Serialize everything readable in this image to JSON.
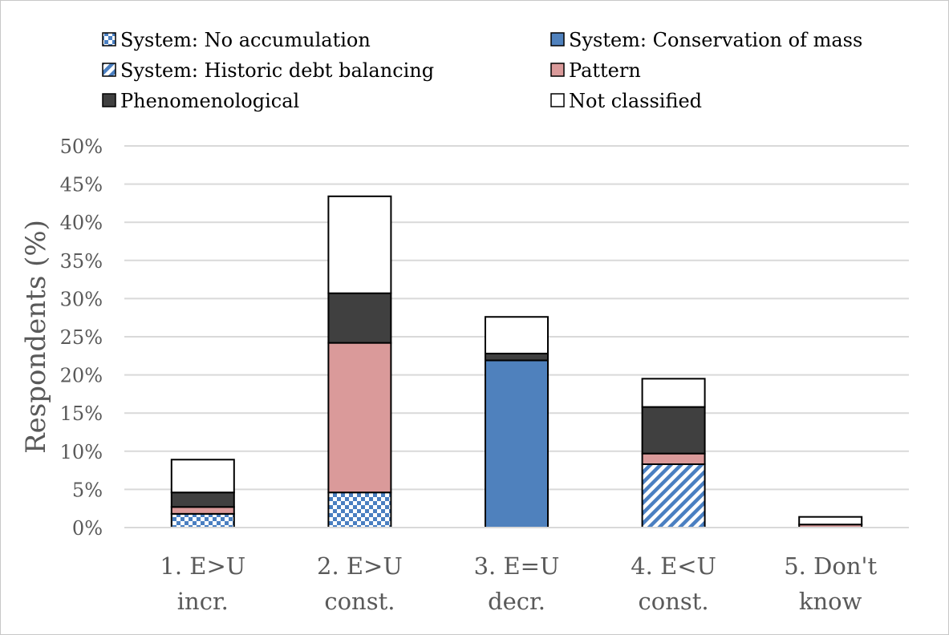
{
  "chart_data": {
    "type": "bar",
    "stacked": true,
    "title": "",
    "xlabel": "",
    "ylabel": "Respondents (%)",
    "ylim": [
      0,
      50
    ],
    "yticks": [
      0,
      5,
      10,
      15,
      20,
      25,
      30,
      35,
      40,
      45,
      50
    ],
    "ytick_labels": [
      "0%",
      "5%",
      "10%",
      "15%",
      "20%",
      "25%",
      "30%",
      "35%",
      "40%",
      "45%",
      "50%"
    ],
    "grid": true,
    "legend_position": "top",
    "categories": [
      [
        "1. E>U",
        "incr."
      ],
      [
        "2. E>U",
        "const."
      ],
      [
        "3. E=U",
        "decr."
      ],
      [
        "4. E<U",
        "const."
      ],
      [
        "5. Don't",
        "know"
      ]
    ],
    "series": [
      {
        "name": "System: No accumulation",
        "key": "checker",
        "color": "#4a7fc1",
        "values": [
          1.8,
          4.6,
          0,
          0,
          0
        ]
      },
      {
        "name": "System: Historic debt balancing",
        "key": "diag",
        "color": "#4a7fc1",
        "values": [
          0,
          0,
          0,
          8.3,
          0
        ]
      },
      {
        "name": "System: Conservation of mass",
        "key": "solid",
        "color": "#4f81bd",
        "values": [
          0,
          0,
          21.9,
          0,
          0
        ]
      },
      {
        "name": "Pattern",
        "key": "solid",
        "color": "#da9a9a",
        "values": [
          0.9,
          19.6,
          0,
          1.4,
          0.4
        ]
      },
      {
        "name": "Phenomenological",
        "key": "solid",
        "color": "#404040",
        "values": [
          1.9,
          6.5,
          0.9,
          6.1,
          0
        ]
      },
      {
        "name": "Not classified",
        "key": "solid",
        "color": "#ffffff",
        "values": [
          4.3,
          12.7,
          4.8,
          3.7,
          1.0
        ]
      }
    ],
    "legend": [
      {
        "name": "System: No accumulation",
        "key": "checker",
        "color": "#4a7fc1"
      },
      {
        "name": "System: Conservation of mass",
        "key": "solid",
        "color": "#4f81bd"
      },
      {
        "name": "System: Historic debt balancing",
        "key": "diag",
        "color": "#4a7fc1"
      },
      {
        "name": "Pattern",
        "key": "solid",
        "color": "#da9a9a"
      },
      {
        "name": "Phenomenological",
        "key": "solid",
        "color": "#404040"
      },
      {
        "name": "Not classified",
        "key": "solid",
        "color": "#ffffff"
      }
    ]
  }
}
